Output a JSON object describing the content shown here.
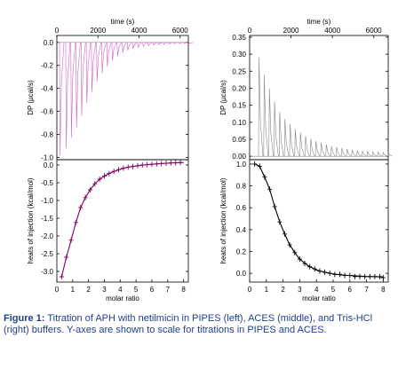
{
  "caption": {
    "label": "Figure 1:",
    "text": "Titration of APH with netilmicin in PIPES (left), ACES (middle), and Tris-HCl (right) buffers. Y-axes are shown to scale for titrations in PIPES and ACES."
  },
  "colors": {
    "left_raw": "#cc66cc",
    "left_fit": "#800060",
    "right_raw": "#888888",
    "right_fit": "#000000"
  },
  "chart_data": [
    {
      "type": "line",
      "panel": "left-top",
      "xlabel": "time (s)",
      "ylabel": "DP (µcal/s)",
      "x_ticks": [
        0,
        2000,
        4000,
        6000
      ],
      "y_ticks": [
        0.0,
        -0.2,
        -0.4,
        -0.6,
        -0.8,
        -1.0
      ],
      "xlim": [
        0,
        6400
      ],
      "ylim": [
        -1.02,
        0.06
      ],
      "grid": false,
      "injections": {
        "times": [
          0,
          300,
          550,
          800,
          1050,
          1300,
          1550,
          1800,
          2050,
          2300,
          2550,
          2800,
          3050,
          3300,
          3550,
          3800,
          4050,
          4300,
          4550,
          4800,
          5050,
          5300,
          5550,
          5800,
          6050,
          6300
        ],
        "peak_values": [
          -0.98,
          -0.92,
          -0.83,
          -0.74,
          -0.64,
          -0.53,
          -0.43,
          -0.34,
          -0.27,
          -0.21,
          -0.16,
          -0.12,
          -0.09,
          -0.07,
          -0.055,
          -0.045,
          -0.035,
          -0.03,
          -0.025,
          -0.02,
          -0.018,
          -0.015,
          -0.013,
          -0.012,
          -0.011,
          -0.01
        ]
      },
      "baseline": 0.0
    },
    {
      "type": "scatter",
      "panel": "left-bottom",
      "xlabel": "molar ratio",
      "ylabel": "heats of injection (kcal/mol)",
      "x_ticks": [
        0,
        1,
        2,
        3,
        4,
        5,
        6,
        7,
        8
      ],
      "y_ticks": [
        0.0,
        -0.5,
        -1.0,
        -1.5,
        -2.0,
        -2.5,
        -3.0
      ],
      "xlim": [
        0,
        8.3
      ],
      "ylim": [
        -3.3,
        0.15
      ],
      "grid": false,
      "x": [
        0.3,
        0.6,
        0.9,
        1.2,
        1.5,
        1.8,
        2.1,
        2.4,
        2.7,
        3.0,
        3.3,
        3.6,
        3.9,
        4.2,
        4.5,
        4.8,
        5.1,
        5.4,
        5.7,
        6.0,
        6.3,
        6.6,
        6.9,
        7.2,
        7.5,
        7.8
      ],
      "values": [
        -3.15,
        -2.6,
        -2.12,
        -1.62,
        -1.2,
        -0.92,
        -0.7,
        -0.53,
        -0.4,
        -0.31,
        -0.24,
        -0.18,
        -0.13,
        -0.09,
        -0.06,
        -0.04,
        -0.02,
        0.0,
        0.01,
        0.02,
        0.03,
        0.04,
        0.05,
        0.06,
        0.06,
        0.07
      ],
      "fit": {
        "x": [
          0.3,
          0.6,
          0.9,
          1.2,
          1.5,
          1.8,
          2.1,
          2.4,
          2.7,
          3.0,
          3.5,
          4.0,
          4.5,
          5.0,
          5.5,
          6.0,
          6.5,
          7.0,
          7.5,
          8.0
        ],
        "y": [
          -3.15,
          -2.6,
          -2.12,
          -1.62,
          -1.2,
          -0.92,
          -0.7,
          -0.53,
          -0.4,
          -0.31,
          -0.2,
          -0.12,
          -0.06,
          -0.03,
          0.0,
          0.02,
          0.04,
          0.05,
          0.06,
          0.07
        ]
      }
    },
    {
      "type": "line",
      "panel": "right-top",
      "xlabel": "time (s)",
      "ylabel": "DP (µcal/s)",
      "x_ticks": [
        0,
        2000,
        4000,
        6000
      ],
      "y_ticks": [
        0.0,
        0.05,
        0.1,
        0.15,
        0.2,
        0.25,
        0.3,
        0.35
      ],
      "xlim": [
        0,
        6700
      ],
      "ylim": [
        -0.01,
        0.355
      ],
      "grid": false,
      "injections": {
        "times": [
          300,
          550,
          800,
          1050,
          1300,
          1550,
          1800,
          2050,
          2300,
          2550,
          2800,
          3050,
          3300,
          3550,
          3800,
          4050,
          4300,
          4550,
          4800,
          5050,
          5300,
          5550,
          5800,
          6050,
          6300,
          6550
        ],
        "peak_values": [
          0.29,
          0.24,
          0.2,
          0.16,
          0.13,
          0.11,
          0.095,
          0.08,
          0.07,
          0.06,
          0.052,
          0.045,
          0.04,
          0.035,
          0.03,
          0.027,
          0.024,
          0.021,
          0.019,
          0.017,
          0.015,
          0.014,
          0.013,
          0.012,
          0.011,
          0.01
        ]
      },
      "baseline": 0.0
    },
    {
      "type": "scatter",
      "panel": "right-bottom",
      "xlabel": "molar ratio",
      "ylabel": "heats of injection (kcal/mol)",
      "x_ticks": [
        0,
        1,
        2,
        3,
        4,
        5,
        6,
        7,
        8
      ],
      "y_ticks": [
        0.0,
        0.2,
        0.4,
        0.6,
        0.8,
        1.0
      ],
      "xlim": [
        0,
        8.3
      ],
      "ylim": [
        -0.08,
        1.04
      ],
      "grid": false,
      "x": [
        0.3,
        0.6,
        0.9,
        1.2,
        1.5,
        1.8,
        2.1,
        2.4,
        2.7,
        3.0,
        3.3,
        3.6,
        3.9,
        4.2,
        4.5,
        4.8,
        5.1,
        5.4,
        5.7,
        6.0,
        6.3,
        6.6,
        6.9,
        7.2,
        7.5,
        7.8,
        8.0
      ],
      "values": [
        1.0,
        0.98,
        0.88,
        0.77,
        0.61,
        0.47,
        0.36,
        0.26,
        0.19,
        0.13,
        0.09,
        0.06,
        0.04,
        0.02,
        0.01,
        0.0,
        -0.01,
        -0.01,
        -0.02,
        -0.02,
        -0.03,
        -0.03,
        -0.03,
        -0.03,
        -0.03,
        -0.03,
        -0.04
      ],
      "fit": {
        "x": [
          0.3,
          0.6,
          0.9,
          1.2,
          1.5,
          1.8,
          2.1,
          2.4,
          2.7,
          3.0,
          3.5,
          4.0,
          4.5,
          5.0,
          5.5,
          6.0,
          6.5,
          7.0,
          7.5,
          8.0
        ],
        "y": [
          1.0,
          0.98,
          0.88,
          0.77,
          0.61,
          0.47,
          0.36,
          0.26,
          0.19,
          0.13,
          0.07,
          0.03,
          0.01,
          -0.005,
          -0.015,
          -0.02,
          -0.025,
          -0.03,
          -0.03,
          -0.035
        ]
      }
    }
  ]
}
